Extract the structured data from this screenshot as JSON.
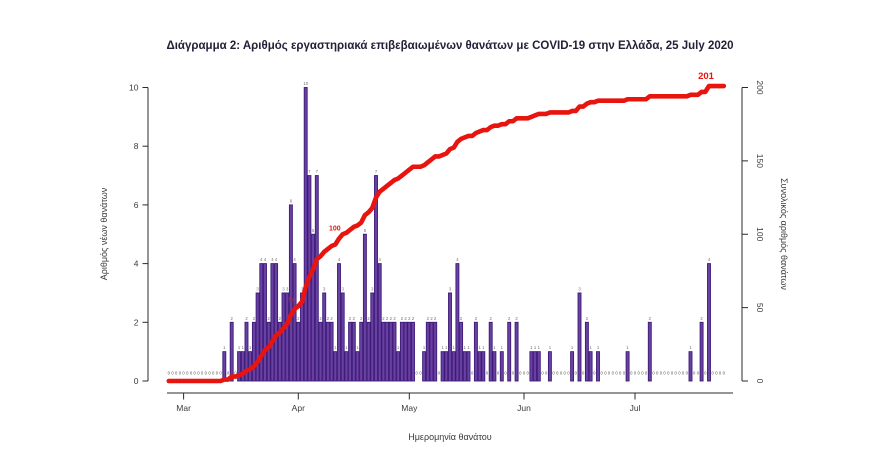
{
  "title": "Διάγραμμα 2: Αριθμός εργαστηριακά επιβεβαιωμένων θανάτων με COVID-19 στην Ελλάδα, 25 July 2020",
  "colors": {
    "bar_fill": "#6b40a3",
    "bar_stroke": "#3c1c77",
    "line_red": "#e8140f",
    "title_text": "#232038",
    "axis_text": "#3a3a3a",
    "tiny_label_text": "#6e6e6e"
  },
  "chart_data": {
    "type": "bar",
    "subtype": "daily bars with cumulative line overlay",
    "title": "Διάγραμμα 2: Αριθμός εργαστηριακά επιβεβαιωμένων θανάτων με COVID-19 στην Ελλάδα, 25 July 2020",
    "xlabel": "Ημερομηνία θανάτου",
    "x_tick_labels": [
      "Mar",
      "Apr",
      "May",
      "Jun",
      "Jul"
    ],
    "x_month_start_indices": [
      4,
      35,
      65,
      96,
      126
    ],
    "y_left": {
      "label": "Αριθμός νέων θανάτων",
      "ticks": [
        0,
        2,
        4,
        6,
        8,
        10
      ],
      "lim": [
        0,
        10
      ]
    },
    "y_right": {
      "label": "Συνολικός αριθμός θανάτων",
      "ticks": [
        0,
        50,
        100,
        150,
        200
      ],
      "lim": [
        0,
        200
      ]
    },
    "grid": false,
    "series": [
      {
        "name": "daily-deaths",
        "type": "bar",
        "values": [
          0,
          0,
          0,
          0,
          0,
          0,
          0,
          0,
          0,
          0,
          0,
          0,
          0,
          0,
          0,
          1,
          0,
          2,
          0,
          1,
          1,
          2,
          1,
          2,
          3,
          4,
          4,
          2,
          4,
          4,
          2,
          3,
          3,
          6,
          4,
          2,
          3,
          10,
          7,
          5,
          7,
          2,
          3,
          2,
          2,
          1,
          4,
          3,
          1,
          2,
          2,
          1,
          2,
          5,
          2,
          3,
          7,
          4,
          2,
          2,
          2,
          2,
          1,
          2,
          2,
          2,
          2,
          0,
          0,
          1,
          2,
          2,
          2,
          0,
          1,
          1,
          3,
          1,
          4,
          2,
          1,
          1,
          0,
          2,
          1,
          1,
          0,
          2,
          1,
          0,
          1,
          0,
          2,
          0,
          2,
          0,
          0,
          0,
          1,
          1,
          1,
          0,
          0,
          1,
          0,
          0,
          0,
          0,
          0,
          1,
          0,
          3,
          0,
          2,
          1,
          0,
          1,
          0,
          0,
          0,
          0,
          0,
          0,
          0,
          1,
          0,
          0,
          0,
          0,
          0,
          2,
          0,
          0,
          0,
          0,
          0,
          0,
          0,
          0,
          0,
          0,
          1,
          0,
          0,
          2,
          0,
          4,
          0,
          0,
          0,
          0
        ]
      },
      {
        "name": "cumulative-deaths",
        "type": "line",
        "derived": "cumulative sum of daily-deaths",
        "final_value": 201
      }
    ],
    "annotations": [
      {
        "text": "50",
        "milestone": 50
      },
      {
        "text": "100",
        "milestone": 100
      },
      {
        "text": "201",
        "milestone": 201
      }
    ],
    "zero_day_marker": "0",
    "bar_value_labels": true
  }
}
